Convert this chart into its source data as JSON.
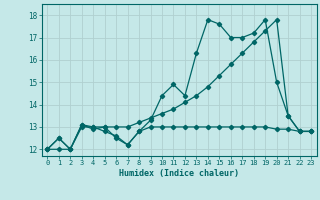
{
  "xlabel": "Humidex (Indice chaleur)",
  "bg_color": "#c5e8e8",
  "grid_color": "#b0d0d0",
  "line_color": "#006666",
  "xlim": [
    -0.5,
    23.5
  ],
  "ylim": [
    11.7,
    18.5
  ],
  "yticks": [
    12,
    13,
    14,
    15,
    16,
    17,
    18
  ],
  "xticks": [
    0,
    1,
    2,
    3,
    4,
    5,
    6,
    7,
    8,
    9,
    10,
    11,
    12,
    13,
    14,
    15,
    16,
    17,
    18,
    19,
    20,
    21,
    22,
    23
  ],
  "line1_x": [
    0,
    1,
    2,
    3,
    4,
    5,
    6,
    7,
    8,
    9,
    10,
    11,
    12,
    13,
    14,
    15,
    16,
    17,
    18,
    19,
    20,
    21,
    22,
    23
  ],
  "line1_y": [
    12,
    12.5,
    12,
    13.1,
    13.0,
    12.8,
    12.6,
    12.2,
    12.8,
    13.0,
    13.0,
    13.0,
    13.0,
    13.0,
    13.0,
    13.0,
    13.0,
    13.0,
    13.0,
    13.0,
    12.9,
    12.9,
    12.8,
    12.8
  ],
  "line2_x": [
    0,
    1,
    2,
    3,
    4,
    5,
    6,
    7,
    8,
    9,
    10,
    11,
    12,
    13,
    14,
    15,
    16,
    17,
    18,
    19,
    20,
    21,
    22,
    23
  ],
  "line2_y": [
    12,
    12.5,
    12,
    13.1,
    12.9,
    13.0,
    12.5,
    12.2,
    12.8,
    13.3,
    14.4,
    14.9,
    14.4,
    16.3,
    17.8,
    17.6,
    17.0,
    17.0,
    17.2,
    17.8,
    15.0,
    13.5,
    12.8,
    12.8
  ],
  "line3_x": [
    0,
    1,
    2,
    3,
    4,
    5,
    6,
    7,
    8,
    9,
    10,
    11,
    12,
    13,
    14,
    15,
    16,
    17,
    18,
    19,
    20,
    21,
    22,
    23
  ],
  "line3_y": [
    12,
    12.0,
    12.0,
    13.0,
    13.0,
    13.0,
    13.0,
    13.0,
    13.2,
    13.4,
    13.6,
    13.8,
    14.1,
    14.4,
    14.8,
    15.3,
    15.8,
    16.3,
    16.8,
    17.3,
    17.8,
    13.5,
    12.8,
    12.8
  ]
}
